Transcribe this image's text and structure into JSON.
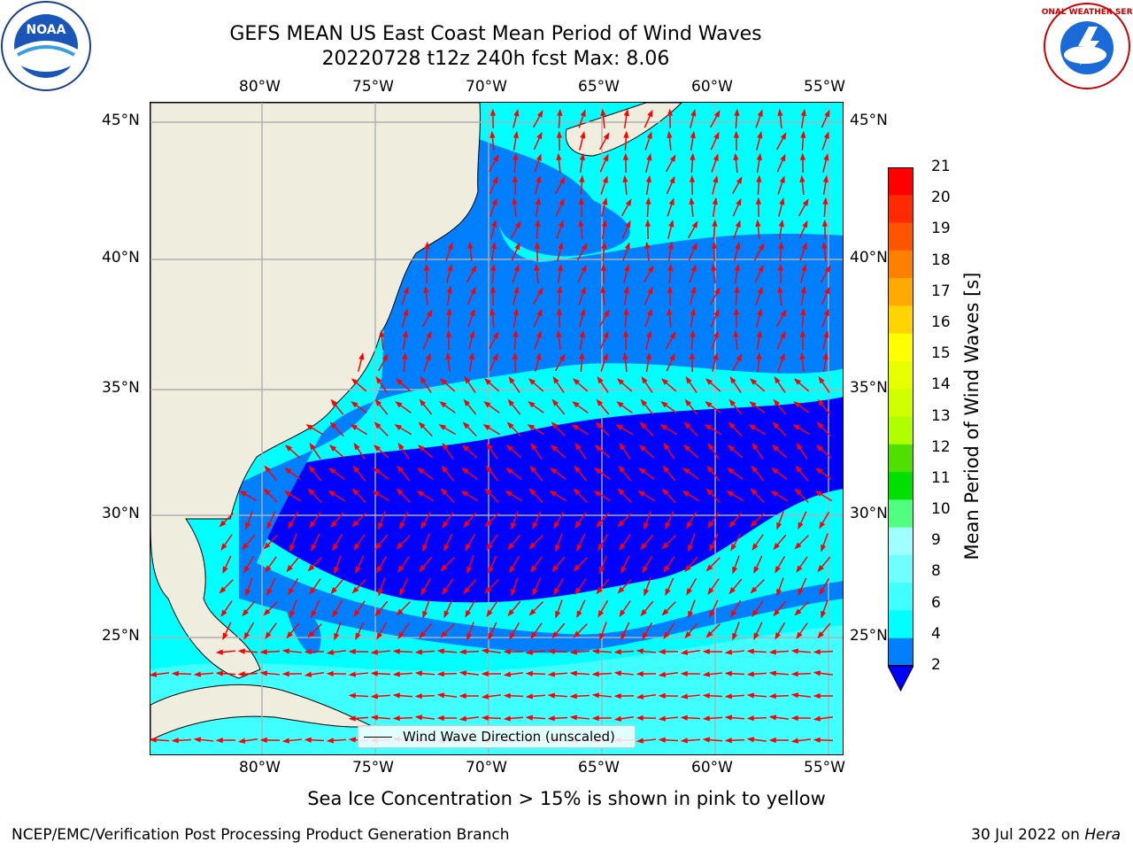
{
  "title": {
    "line1": "GEFS MEAN US East Coast Mean Period of Wind Waves",
    "line2": "20220728 t12z 240h fcst   Max: 8.06"
  },
  "map": {
    "lon_ticks": [
      "80°W",
      "75°W",
      "70°W",
      "65°W",
      "60°W",
      "55°W"
    ],
    "lat_ticks": [
      "45°N",
      "40°N",
      "35°N",
      "30°N",
      "25°N"
    ],
    "colors": {
      "land": "#efedde",
      "shelf": "#0080ff",
      "deep": "#0000ff",
      "cyan": "#00ffff",
      "light_cyan": "#40ffff",
      "arrows": "#ff0000",
      "grid": "#b0b0b0"
    }
  },
  "legend": {
    "label": "Wind Wave Direction (unscaled)"
  },
  "colorbar": {
    "title": "Mean Period of Wind Waves [s]",
    "ticks": [
      "21",
      "20",
      "19",
      "18",
      "17",
      "16",
      "15",
      "14",
      "13",
      "12",
      "11",
      "10",
      "9",
      "8",
      "6",
      "4",
      "2"
    ],
    "colors": [
      "#ff0000",
      "#ff2a00",
      "#ff5500",
      "#ff8000",
      "#ffaa00",
      "#ffd400",
      "#ffff00",
      "#e8ff00",
      "#d0ff00",
      "#b0ff00",
      "#50e000",
      "#00e000",
      "#50ff80",
      "#a0ffff",
      "#70ffff",
      "#40ffff",
      "#00ffff",
      "#0080ff"
    ],
    "under_color": "#0000ff"
  },
  "notes": {
    "ice": "Sea Ice Concentration > 15% is shown in pink to yellow",
    "footer_left": "NCEP/EMC/Verification Post Processing Product Generation Branch",
    "footer_date": "30 Jul 2022 on ",
    "footer_host": "Hera"
  },
  "logos": {
    "noaa": "NOAA",
    "nws": "NATIONAL WEATHER SERVICE"
  }
}
